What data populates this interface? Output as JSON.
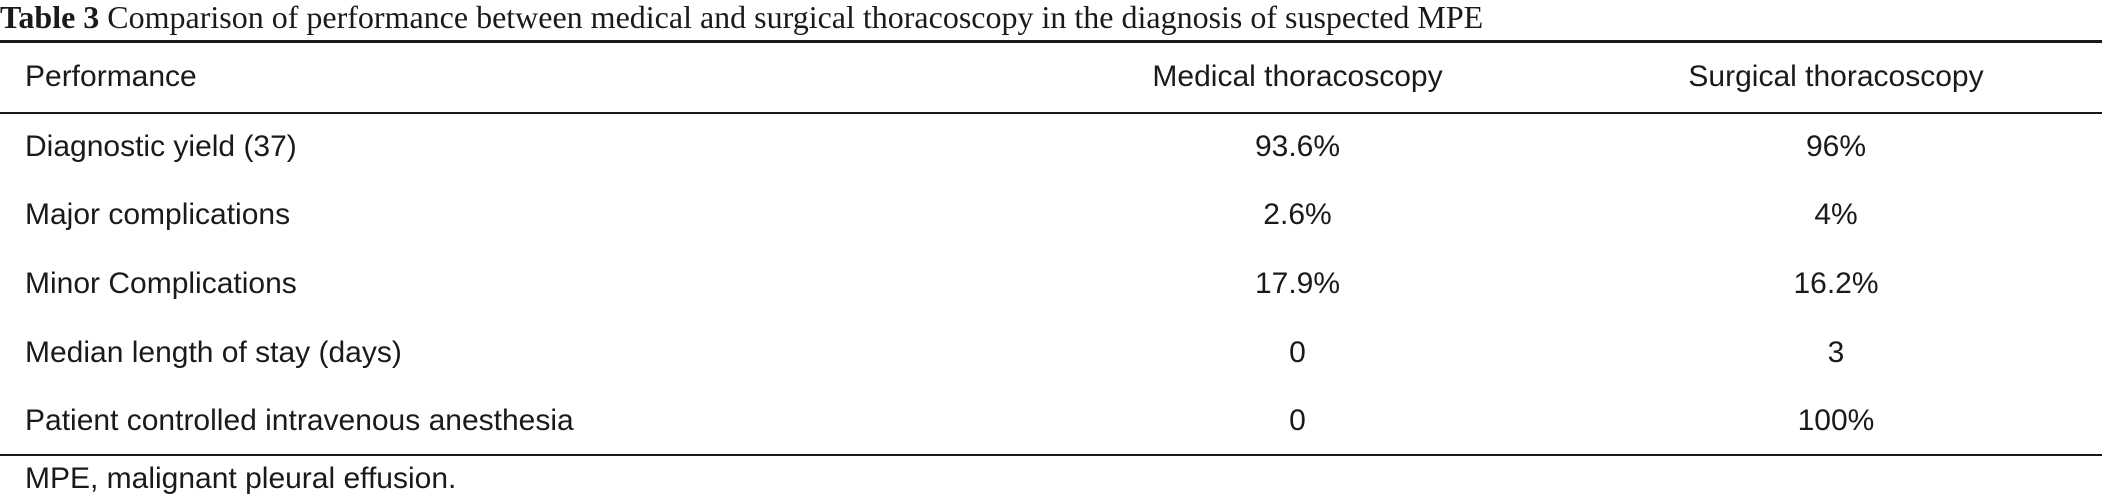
{
  "caption": {
    "label": "Table 3",
    "text": "Comparison of performance between medical and surgical thoracoscopy in the diagnosis of suspected MPE"
  },
  "table": {
    "headers": [
      "Performance",
      "Medical thoracoscopy",
      "Surgical thoracoscopy"
    ],
    "rows": [
      [
        "Diagnostic yield (37)",
        "93.6%",
        "96%"
      ],
      [
        "Major complications",
        "2.6%",
        "4%"
      ],
      [
        "Minor Complications",
        "17.9%",
        "16.2%"
      ],
      [
        "Median length of stay (days)",
        "0",
        "3"
      ],
      [
        "Patient controlled intravenous anesthesia",
        "0",
        "100%"
      ]
    ]
  },
  "footnote": "MPE, malignant pleural effusion."
}
